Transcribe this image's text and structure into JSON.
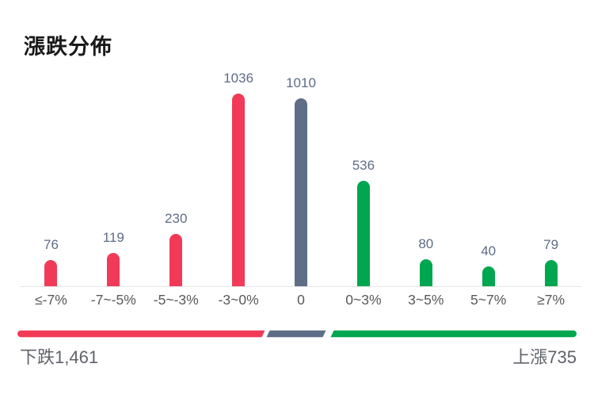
{
  "title": "漲跌分佈",
  "chart_data": {
    "type": "bar",
    "title": "漲跌分佈",
    "categories": [
      "≤-7%",
      "-7~-5%",
      "-5~-3%",
      "-3~0%",
      "0",
      "0~3%",
      "3~5%",
      "5~7%",
      "≥7%"
    ],
    "values": [
      76,
      119,
      230,
      1036,
      1010,
      536,
      80,
      40,
      79
    ],
    "bar_colors": [
      "#F13A57",
      "#F13A57",
      "#F13A57",
      "#F13A57",
      "#5F6E87",
      "#00A650",
      "#00A650",
      "#00A650",
      "#00A650"
    ],
    "xlabel": "",
    "ylabel": "",
    "value_axis": "hidden",
    "grid": false,
    "legend": "none",
    "value_label_color": "#5E6C84",
    "category_label_color": "#595959",
    "axis_line_color": "#E5E5E5"
  },
  "summary_bar": {
    "segments": [
      {
        "name": "down",
        "color": "#F13A57",
        "fraction": 0.444
      },
      {
        "name": "neutral",
        "color": "#5F6E87",
        "fraction": 0.111
      },
      {
        "name": "up",
        "color": "#00A650",
        "fraction": 0.444
      }
    ]
  },
  "footer": {
    "down_label": "下跌",
    "down_value": "1,461",
    "up_label": "上漲",
    "up_value": "735"
  }
}
